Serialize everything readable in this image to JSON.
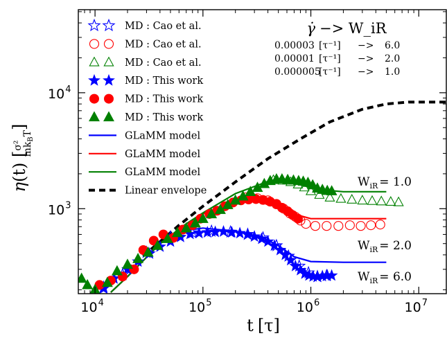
{
  "chart_data": {
    "type": "scatter",
    "title": "",
    "xlabel": "t [τ]",
    "ylabel": "η(t) [σ²/(m k_B T)]",
    "xscale": "log",
    "yscale": "log",
    "xlim": [
      7000,
      18000000
    ],
    "ylim": [
      185,
      52000
    ],
    "grid": false,
    "legend_position": "top-left",
    "x_ticks": [
      {
        "value": 10000,
        "base": "10",
        "exp": "4"
      },
      {
        "value": 100000,
        "base": "10",
        "exp": "5"
      },
      {
        "value": 1000000,
        "base": "10",
        "exp": "6"
      },
      {
        "value": 10000000,
        "base": "10",
        "exp": "7"
      }
    ],
    "y_ticks": [
      {
        "value": 1000,
        "base": "10",
        "exp": "3"
      },
      {
        "value": 10000,
        "base": "10",
        "exp": "4"
      }
    ],
    "rate_legend": {
      "header": "γ̇ −> W_iR",
      "rows": [
        {
          "rate": "0.00003",
          "unit": "[τ⁻¹]",
          "arrow": "−>",
          "wi": "6.0"
        },
        {
          "rate": "0.00001",
          "unit": "[τ⁻¹]",
          "arrow": "−>",
          "wi": "2.0"
        },
        {
          "rate": "0.000005",
          "unit": "[τ⁻¹]",
          "arrow": "−>",
          "wi": "1.0"
        }
      ]
    },
    "curve_labels": [
      {
        "text": "W_iR = 1.0",
        "value": "1.0"
      },
      {
        "text": "W_iR = 2.0",
        "value": "2.0"
      },
      {
        "text": "W_iR = 6.0",
        "value": "6.0"
      }
    ],
    "legend": [
      {
        "label": "MD : Cao et al.",
        "marker": "star-open",
        "color": "#0000ff"
      },
      {
        "label": "MD : Cao et al.",
        "marker": "circle-open",
        "color": "#ff0000"
      },
      {
        "label": "MD : Cao et al.",
        "marker": "triangle-open",
        "color": "#008000"
      },
      {
        "label": "MD : This work",
        "marker": "star",
        "color": "#0000ff"
      },
      {
        "label": "MD : This work",
        "marker": "circle",
        "color": "#ff0000"
      },
      {
        "label": "MD : This work",
        "marker": "triangle",
        "color": "#008000"
      },
      {
        "label": "GLaMM model",
        "marker": "line",
        "color": "#0000ff"
      },
      {
        "label": "GLaMM model",
        "marker": "line",
        "color": "#ff0000"
      },
      {
        "label": "GLaMM model",
        "marker": "line",
        "color": "#008000"
      },
      {
        "label": "Linear envelope",
        "marker": "dash",
        "color": "#000000"
      }
    ],
    "series": [
      {
        "marker": "dash",
        "color": "#000000",
        "x": [
          12000,
          20000,
          40000,
          60000,
          100000,
          200000,
          400000,
          800000,
          1500000,
          3000000,
          5000000,
          8000000,
          18000000
        ],
        "y": [
          200,
          300,
          520,
          720,
          1050,
          1700,
          2700,
          4000,
          5600,
          7200,
          8000,
          8300,
          8300
        ]
      },
      {
        "marker": "line",
        "color": "#0000ff",
        "x": [
          14000,
          20000,
          40000,
          70000,
          100000,
          200000,
          350000,
          500000,
          700000,
          1000000,
          2000000,
          5000000
        ],
        "y": [
          190,
          260,
          500,
          650,
          680,
          640,
          570,
          480,
          385,
          350,
          345,
          345
        ]
      },
      {
        "marker": "line",
        "color": "#ff0000",
        "x": [
          14000,
          20000,
          40000,
          70000,
          100000,
          200000,
          300000,
          500000,
          700000,
          1000000,
          2000000,
          5000000
        ],
        "y": [
          190,
          260,
          500,
          740,
          900,
          1180,
          1220,
          1110,
          900,
          820,
          820,
          820
        ]
      },
      {
        "marker": "line",
        "color": "#008000",
        "x": [
          14000,
          20000,
          40000,
          70000,
          100000,
          200000,
          400000,
          600000,
          800000,
          1100000,
          2000000,
          5000000
        ],
        "y": [
          190,
          260,
          500,
          740,
          920,
          1350,
          1720,
          1740,
          1620,
          1470,
          1400,
          1400
        ]
      },
      {
        "marker": "star-open",
        "color": "#0000ff",
        "x": [
          12000,
          18000,
          30000,
          50000,
          80000,
          120000,
          180000,
          260000,
          360000,
          480000,
          620000,
          780000,
          950000,
          1150000,
          1400000
        ],
        "y": [
          210,
          270,
          420,
          570,
          620,
          640,
          630,
          600,
          560,
          480,
          390,
          320,
          280,
          260,
          265
        ]
      },
      {
        "marker": "circle-open",
        "color": "#ff0000",
        "x": [
          250000,
          320000,
          400000,
          480000,
          560000,
          640000,
          720000,
          800000,
          900000,
          1100000,
          1400000,
          1800000,
          2300000,
          2900000,
          3600000,
          4400000
        ],
        "y": [
          1250,
          1230,
          1180,
          1100,
          1000,
          910,
          850,
          790,
          740,
          710,
          710,
          710,
          720,
          710,
          720,
          730
        ]
      },
      {
        "marker": "triangle-open",
        "color": "#008000",
        "x": [
          450000,
          550000,
          650000,
          760000,
          870000,
          1000000,
          1200000,
          1500000,
          1900000,
          2400000,
          3000000,
          3700000,
          4500000,
          5500000,
          6500000
        ],
        "y": [
          1770,
          1750,
          1700,
          1620,
          1530,
          1420,
          1320,
          1250,
          1220,
          1200,
          1180,
          1170,
          1160,
          1150,
          1140
        ]
      },
      {
        "marker": "star",
        "color": "#0000ff",
        "x": [
          12000,
          15000,
          20000,
          25000,
          32000,
          40000,
          50000,
          62000,
          76000,
          92000,
          110000,
          130000,
          155000,
          185000,
          220000,
          260000,
          300000,
          350000,
          400000,
          460000,
          520000,
          580000,
          650000,
          720000,
          800000,
          880000,
          960000,
          1050000,
          1150000,
          1280000,
          1420000,
          1560000
        ],
        "y": [
          205,
          250,
          300,
          350,
          410,
          470,
          520,
          570,
          605,
          615,
          625,
          630,
          635,
          625,
          615,
          600,
          575,
          550,
          520,
          480,
          440,
          400,
          360,
          320,
          295,
          275,
          265,
          260,
          258,
          262,
          265,
          265
        ]
      },
      {
        "marker": "circle",
        "color": "#ff0000",
        "x": [
          11000,
          14000,
          18000,
          23000,
          28000,
          35000,
          43000,
          53000,
          65000,
          80000,
          95000,
          115000,
          135000,
          160000,
          190000,
          225000,
          265000,
          310000,
          360000,
          420000,
          480000,
          540000,
          610000,
          680000,
          760000
        ],
        "y": [
          220,
          240,
          260,
          300,
          440,
          530,
          600,
          560,
          660,
          720,
          820,
          900,
          960,
          1050,
          1130,
          1180,
          1200,
          1210,
          1190,
          1150,
          1090,
          1020,
          950,
          880,
          820
        ]
      },
      {
        "marker": "triangle",
        "color": "#008000",
        "x": [
          7500,
          8500,
          10000,
          13000,
          16000,
          20000,
          25000,
          31000,
          38000,
          47000,
          58000,
          70000,
          85000,
          100000,
          120000,
          145000,
          170000,
          200000,
          235000,
          275000,
          320000,
          370000,
          420000,
          480000,
          540000,
          610000,
          690000,
          770000,
          850000,
          940000,
          1040000,
          1150000,
          1280000,
          1420000,
          1560000
        ],
        "y": [
          250,
          220,
          200,
          230,
          290,
          330,
          370,
          420,
          480,
          550,
          620,
          680,
          750,
          820,
          900,
          980,
          1080,
          1180,
          1280,
          1400,
          1520,
          1640,
          1740,
          1800,
          1800,
          1780,
          1760,
          1740,
          1720,
          1680,
          1600,
          1500,
          1460,
          1430,
          1420
        ]
      }
    ]
  }
}
